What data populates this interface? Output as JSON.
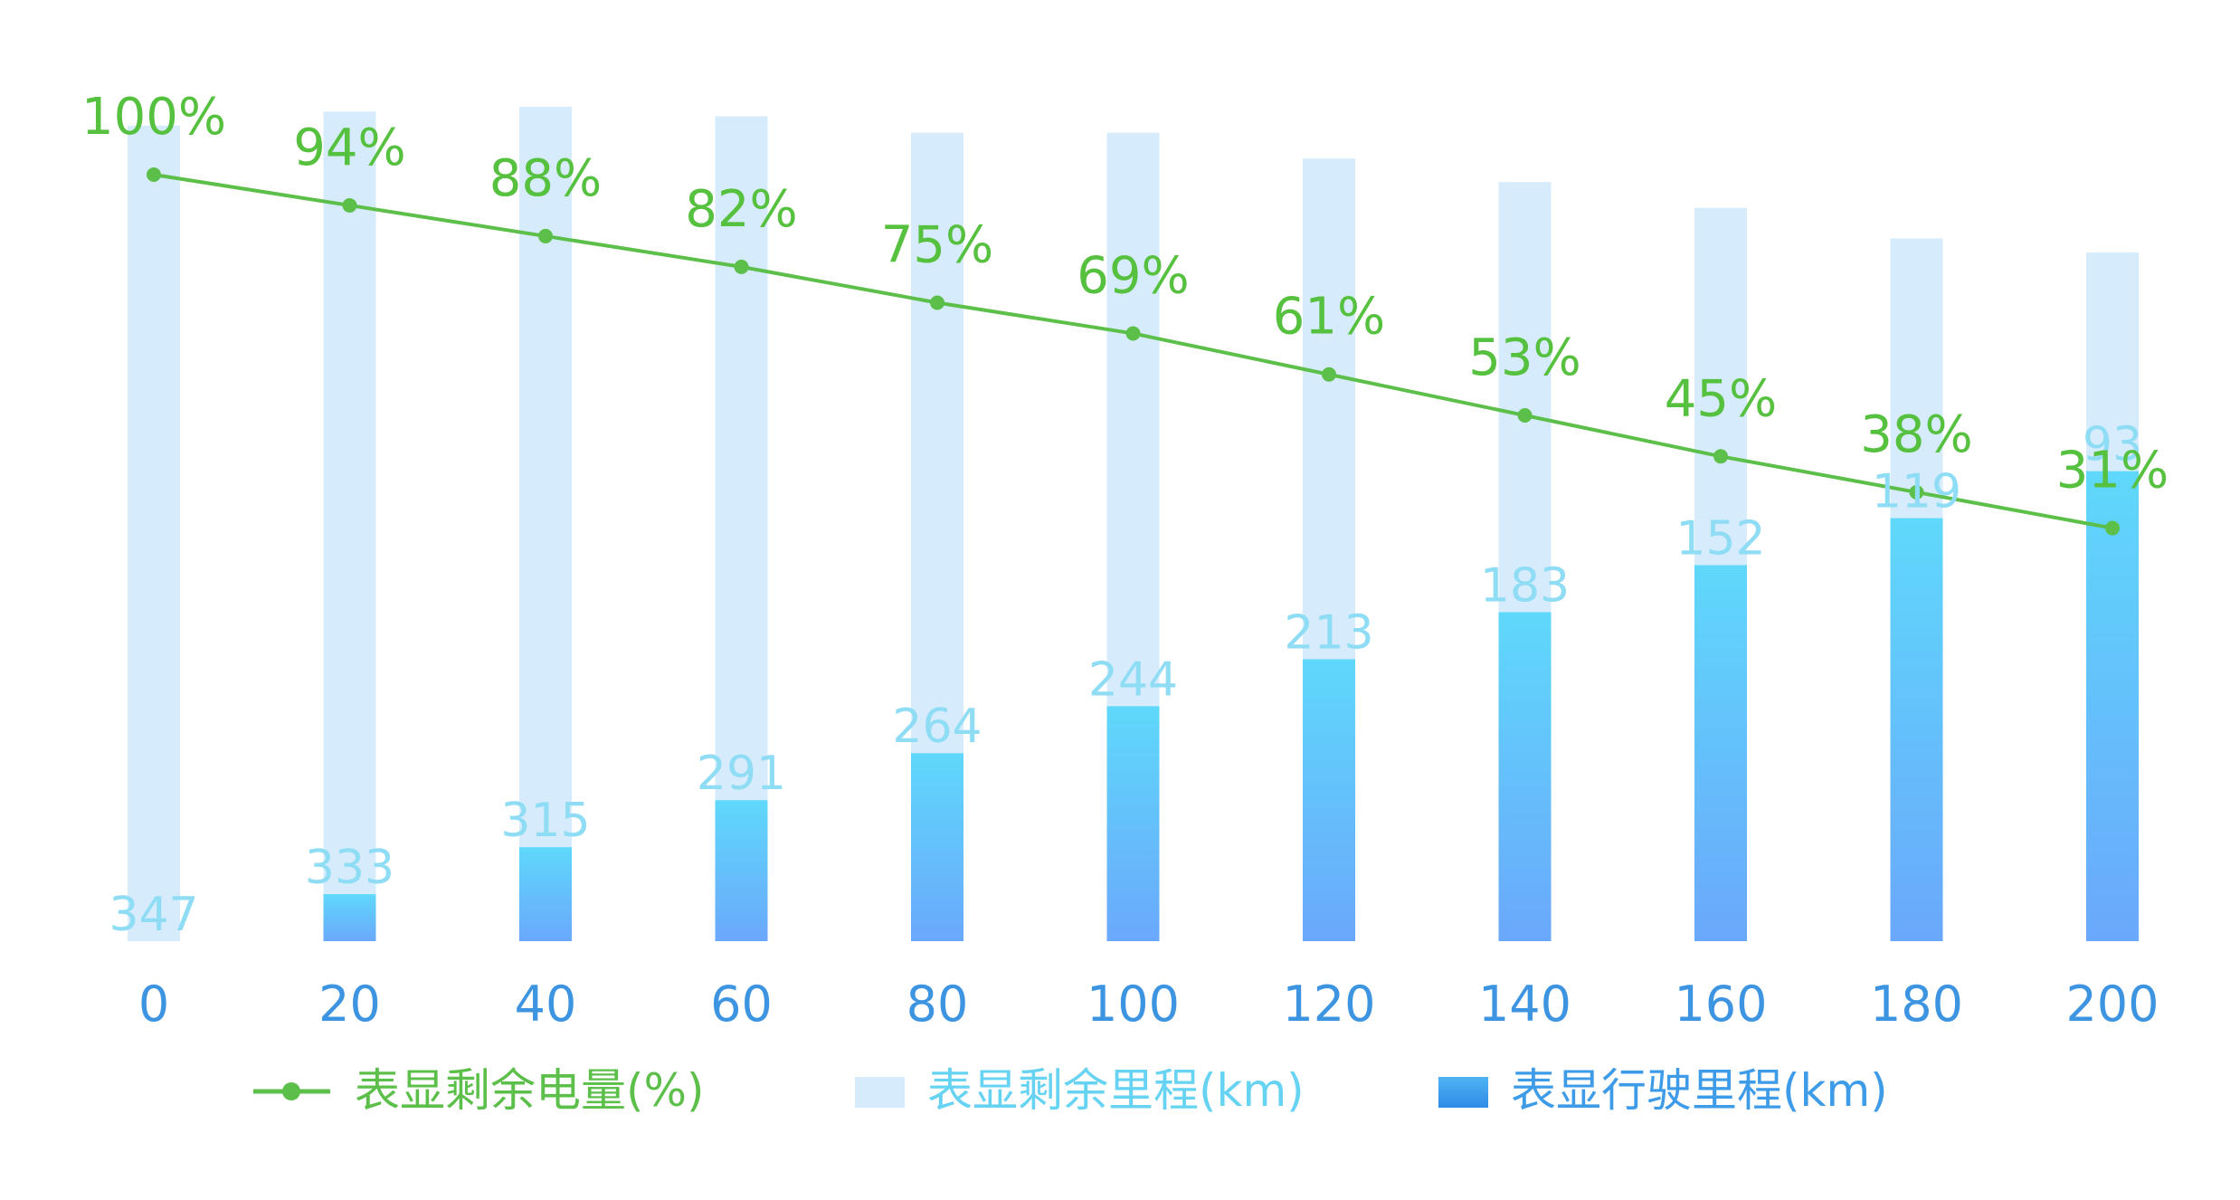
{
  "chart_data": {
    "type": "bar",
    "x": [
      0,
      20,
      40,
      60,
      80,
      100,
      120,
      140,
      160,
      180,
      200
    ],
    "x_tick_labels": [
      "0",
      "20",
      "40",
      "60",
      "80",
      "100",
      "120",
      "140",
      "160",
      "180",
      "200"
    ],
    "series": [
      {
        "name": "表显剩余电量(%)",
        "type": "line",
        "values": [
          100,
          94,
          88,
          82,
          75,
          69,
          61,
          53,
          45,
          38,
          31
        ],
        "labels": [
          "100%",
          "94%",
          "88%",
          "82%",
          "75%",
          "69%",
          "61%",
          "53%",
          "45%",
          "38%",
          "31%"
        ]
      },
      {
        "name": "表显剩余里程(km)",
        "type": "bar-stacked",
        "values": [
          347,
          333,
          315,
          291,
          264,
          244,
          213,
          183,
          152,
          119,
          93
        ],
        "labels": [
          "347",
          "333",
          "315",
          "291",
          "264",
          "244",
          "213",
          "183",
          "152",
          "119",
          "93"
        ]
      },
      {
        "name": "表显行驶里程(km)",
        "type": "bar-stacked",
        "values": [
          0,
          20,
          40,
          60,
          80,
          100,
          120,
          140,
          160,
          180,
          200
        ]
      }
    ],
    "title": "",
    "xlabel": "",
    "ylabel": "",
    "ylim": [
      0,
      370
    ],
    "grid": false,
    "legend_position": "bottom",
    "colors": {
      "line": "#5cbf4a",
      "line_label": "#56c03f",
      "remaining_bar": "#d6ecfc",
      "remaining_label": "#8fdcf5",
      "driven_bar_top": "#5fd8fb",
      "driven_bar_bottom": "#6aa8fb",
      "axis_label": "#3d94e0",
      "legend_line": "#5cbf4a",
      "legend_remaining": "#66d3f2",
      "legend_driven": "#3d9be8"
    }
  },
  "legend": {
    "items": [
      {
        "label": "表显剩余电量(%)",
        "icon": "line-dot-icon"
      },
      {
        "label": "表显剩余里程(km)",
        "icon": "light-bar-icon"
      },
      {
        "label": "表显行驶里程(km)",
        "icon": "blue-bar-icon"
      }
    ]
  }
}
